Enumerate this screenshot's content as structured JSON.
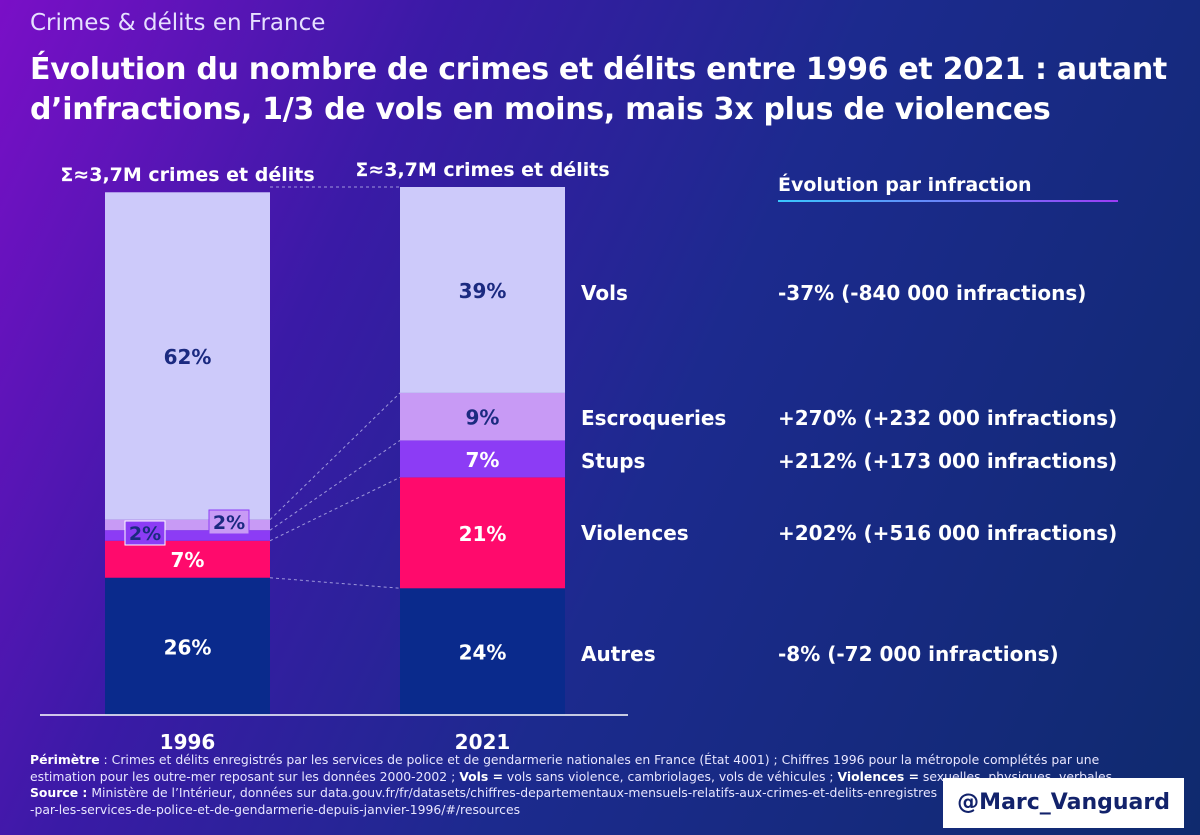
{
  "header": {
    "supertitle": "Crimes & délits en France",
    "title": "Évolution du nombre de crimes et délits entre 1996 et 2021 : autant d’infractions, 1/3 de vols en moins, mais 3x plus de violences"
  },
  "chart_data": {
    "type": "bar",
    "stacked": true,
    "normalized": "percent",
    "categories": [
      "1996",
      "2021"
    ],
    "totals": [
      "Σ≈3,7M crimes et délits",
      "Σ≈3,7M crimes et délits"
    ],
    "series": [
      {
        "name": "Autres",
        "values": [
          26,
          24
        ],
        "labels": [
          "26%",
          "24%"
        ],
        "color": "#0a2a8c",
        "evolution": "-8% (-72 000 infractions)"
      },
      {
        "name": "Violences",
        "values": [
          7,
          21
        ],
        "labels": [
          "7%",
          "21%"
        ],
        "color": "#ff0a6c",
        "evolution": "+202% (+516 000 infractions)"
      },
      {
        "name": "Stups",
        "values": [
          2,
          7
        ],
        "labels": [
          "2%",
          "7%"
        ],
        "color": "#8c3cf5",
        "evolution": "+212% (+173 000 infractions)"
      },
      {
        "name": "Escroqueries",
        "values": [
          2,
          9
        ],
        "labels": [
          "2%",
          "9%"
        ],
        "color": "#c89af5",
        "evolution": "+270% (+232 000 infractions)"
      },
      {
        "name": "Vols",
        "values": [
          62,
          39
        ],
        "labels": [
          "62%",
          "39%"
        ],
        "color": "#cdcafa",
        "evolution": "-37% (-840 000 infractions)"
      }
    ],
    "evolution_header": "Évolution par infraction",
    "ylim": [
      0,
      100
    ]
  },
  "footer": {
    "perimetre_label": "Périmètre",
    "perimetre_text": " : Crimes et délits enregistrés par les services de police et de gendarmerie nationales en France (État 4001) ; Chiffres 1996 pour la métropole complétés par une estimation pour les outre-mer reposant sur les données 2000-2002 ;  ",
    "vols_label": "Vols =",
    "vols_text": " vols sans violence, cambriolages, vols de véhicules ; ",
    "violences_label": "Violences =",
    "violences_text": " sexuelles, physiques, verbales",
    "source_label": "Source :",
    "source_text": " Ministère de l’Intérieur, données sur data.gouv.fr/fr/datasets/chiffres-departementaux-mensuels-relatifs-aux-crimes-et-delits-enregistres",
    "source_text2": "-par-les-services-de-police-et-de-gendarmerie-depuis-janvier-1996/#/resources"
  },
  "handle": "@Marc_Vanguard",
  "colors": {
    "label_dark": "#1b2a80",
    "label_light": "#ffffff",
    "header_underline": "#39c8ff"
  }
}
